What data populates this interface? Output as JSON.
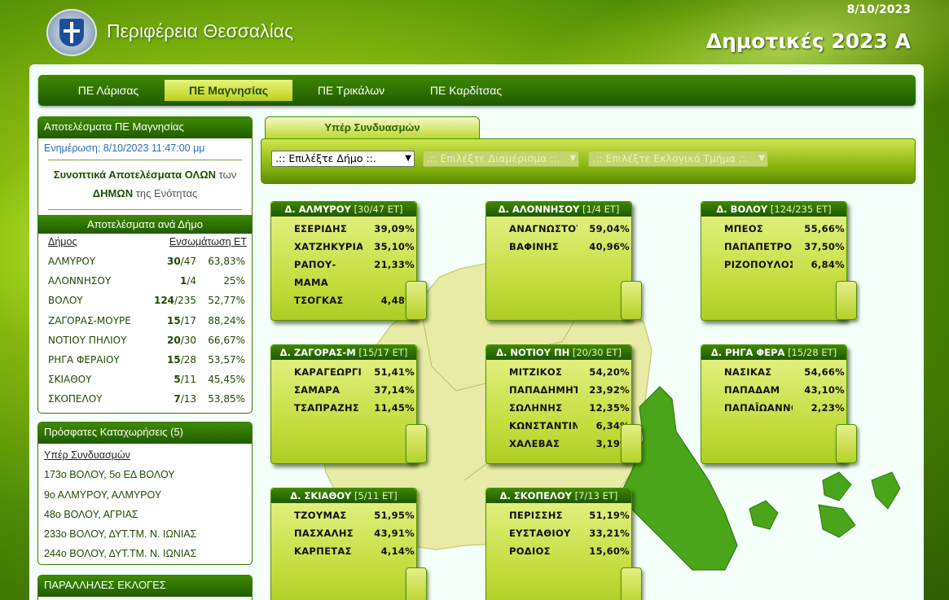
{
  "header": {
    "region": "Περιφέρεια Θεσσαλίας",
    "date": "8/10/2023",
    "title": "Δημοτικές 2023 Α"
  },
  "tabs": [
    {
      "label": "ΠΕ Λάρισας",
      "active": false
    },
    {
      "label": "ΠΕ Μαγνησίας",
      "active": true
    },
    {
      "label": "ΠΕ Τρικάλων",
      "active": false
    },
    {
      "label": "ΠΕ Καρδίτσας",
      "active": false
    }
  ],
  "results_panel": {
    "title": "Αποτελέσματα ΠΕ Μαγνησίας",
    "update": "Ενημέρωση: 8/10/2023 11:47:00 μμ",
    "summary_bold1": "Συνοπτικά Αποτελέσματα ΟΛΩΝ",
    "summary_text1": " των",
    "summary_bold2": "ΔΗΜΩΝ",
    "summary_text2": " της Ενότητας",
    "by_municipality": "Αποτελέσματα ανά Δήμο",
    "col_municipality": "Δήμος",
    "col_integration": "Ενσωμάτωση ΕΤ",
    "rows": [
      {
        "name": "ΑΛΜΥΡΟΥ",
        "done": "30",
        "total": "/47",
        "pct": "63,83%"
      },
      {
        "name": "ΑΛΟΝΝΗΣΟΥ",
        "done": "1",
        "total": "/4",
        "pct": "25%"
      },
      {
        "name": "ΒΟΛΟΥ",
        "done": "124",
        "total": "/235",
        "pct": "52,77%"
      },
      {
        "name": "ΖΑΓΟΡΑΣ-ΜΟΥΡΕ",
        "done": "15",
        "total": "/17",
        "pct": "88,24%"
      },
      {
        "name": "ΝΟΤΙΟΥ ΠΗΛΙΟΥ",
        "done": "20",
        "total": "/30",
        "pct": "66,67%"
      },
      {
        "name": "ΡΗΓΑ ΦΕΡΑΙΟΥ",
        "done": "15",
        "total": "/28",
        "pct": "53,57%"
      },
      {
        "name": "ΣΚΙΑΘΟΥ",
        "done": "5",
        "total": "/11",
        "pct": "45,45%"
      },
      {
        "name": "ΣΚΟΠΕΛΟΥ",
        "done": "7",
        "total": "/13",
        "pct": "53,85%"
      }
    ]
  },
  "recent_panel": {
    "title": "Πρόσφατες Καταχωρήσεις (5)",
    "heading": "Υπέρ Συνδυασμών",
    "items": [
      "173ο ΒΟΛΟΥ, 5ο ΕΔ ΒΟΛΟΥ",
      "9ο ΑΛΜΥΡΟΥ, ΑΛΜΥΡΟΥ",
      "48ο ΒΟΛΟΥ, ΑΓΡΙΑΣ",
      "233ο ΒΟΛΟΥ, ΔΥΤ.ΤΜ. Ν. ΙΩΝΙΑΣ",
      "244ο ΒΟΛΟΥ, ΔΥΤ.ΤΜ. Ν. ΙΩΝΙΑΣ"
    ]
  },
  "parallel_panel": {
    "title": "ΠΑΡΑΛΛΗΛΕΣ ΕΚΛΟΓΕΣ"
  },
  "subtab": "Υπέρ Συνδυασμών",
  "filters": {
    "municipality": ".:: Επιλέξτε Δήμο ::.",
    "department": ".:: Επιλέξτε Διαμέρισμα ::.",
    "section": ".:: Επιλέξτε Εκλογικό Τμήμα ::."
  },
  "colors": {
    "accent_dark": "#1f5a00",
    "accent_light": "#b9d21e",
    "map_fill": "#e8eca6",
    "map_island": "#4aa51a"
  },
  "cards": [
    {
      "name": "Δ. ΑΛΜΥΡΟΥ",
      "et": "[30/47 ΕΤ]",
      "rows": [
        {
          "n": "ΕΣΕΡΙΔΗΣ",
          "p": "39,09%"
        },
        {
          "n": "ΧΑΤΖΗΚΥΡΙΑ",
          "p": "35,10%"
        },
        {
          "n": "ΡΑΠΟΥ-",
          "p": "21,33%"
        },
        {
          "n": "ΜΑΜΑ",
          "p": ""
        },
        {
          "n": "ΤΣΟΓΚΑΣ",
          "p": "4,48%"
        }
      ]
    },
    {
      "name": "Δ. ΑΛΟΝΝΗΣΟΥ",
      "et": "[1/4 ΕΤ]",
      "rows": [
        {
          "n": "ΑΝΑΓΝΩΣΤΟΥ",
          "p": "59,04%"
        },
        {
          "n": "ΒΑΦΙΝΗΣ",
          "p": "40,96%"
        }
      ]
    },
    {
      "name": "Δ. ΒΟΛΟΥ",
      "et": "[124/235 ΕΤ]",
      "rows": [
        {
          "n": "ΜΠΕΟΣ",
          "p": "55,66%"
        },
        {
          "n": "ΠΑΠΑΠΕΤΡΟΣ",
          "p": "37,50%"
        },
        {
          "n": "ΡΙΖΟΠΟΥΛΟΣ",
          "p": "6,84%"
        }
      ]
    },
    {
      "name": "Δ. ΖΑΓΟΡΑΣ-Μ",
      "et": "[15/17 ΕΤ]",
      "rows": [
        {
          "n": "ΚΑΡΑΓΕΩΡΓΙ",
          "p": "51,41%"
        },
        {
          "n": "ΣΑΜΑΡΑ",
          "p": "37,14%"
        },
        {
          "n": "ΤΣΑΠΡΑΖΗΣ",
          "p": "11,45%"
        }
      ]
    },
    {
      "name": "Δ. ΝΟΤΙΟΥ ΠΗ",
      "et": "[20/30 ΕΤ]",
      "rows": [
        {
          "n": "ΜΙΤΖΙΚΟΣ",
          "p": "54,20%"
        },
        {
          "n": "ΠΑΠΑΔΗΜΗΤΡ",
          "p": "23,92%"
        },
        {
          "n": "ΣΩΛΗΝΗΣ",
          "p": "12,35%"
        },
        {
          "n": "ΚΩΝΣΤΑΝΤΙΝ",
          "p": "6,34%"
        },
        {
          "n": "ΧΑΛΕΒΑΣ",
          "p": "3,19%"
        }
      ]
    },
    {
      "name": "Δ. ΡΗΓΑ ΦΕΡΑ",
      "et": "[15/28 ΕΤ]",
      "rows": [
        {
          "n": "ΝΑΣΙΚΑΣ",
          "p": "54,66%"
        },
        {
          "n": "ΠΑΠΑΔΑΜ",
          "p": "43,10%"
        },
        {
          "n": "ΠΑΠΑΪΩΑΝΝΟ",
          "p": "2,23%"
        }
      ]
    },
    {
      "name": "Δ. ΣΚΙΑΘΟΥ",
      "et": "[5/11 ΕΤ]",
      "rows": [
        {
          "n": "ΤΖΟΥΜΑΣ",
          "p": "51,95%"
        },
        {
          "n": "ΠΑΣΧΑΛΗΣ",
          "p": "43,91%"
        },
        {
          "n": "ΚΑΡΠΕΤΑΣ",
          "p": "4,14%"
        }
      ]
    },
    {
      "name": "Δ. ΣΚΟΠΕΛΟΥ",
      "et": "[7/13 ΕΤ]",
      "rows": [
        {
          "n": "ΠΕΡΙΣΣΗΣ",
          "p": "51,19%"
        },
        {
          "n": "ΕΥΣΤΑΘΙΟΥ",
          "p": "33,21%"
        },
        {
          "n": "ΡΟΔΙΟΣ",
          "p": "15,60%"
        }
      ]
    }
  ]
}
